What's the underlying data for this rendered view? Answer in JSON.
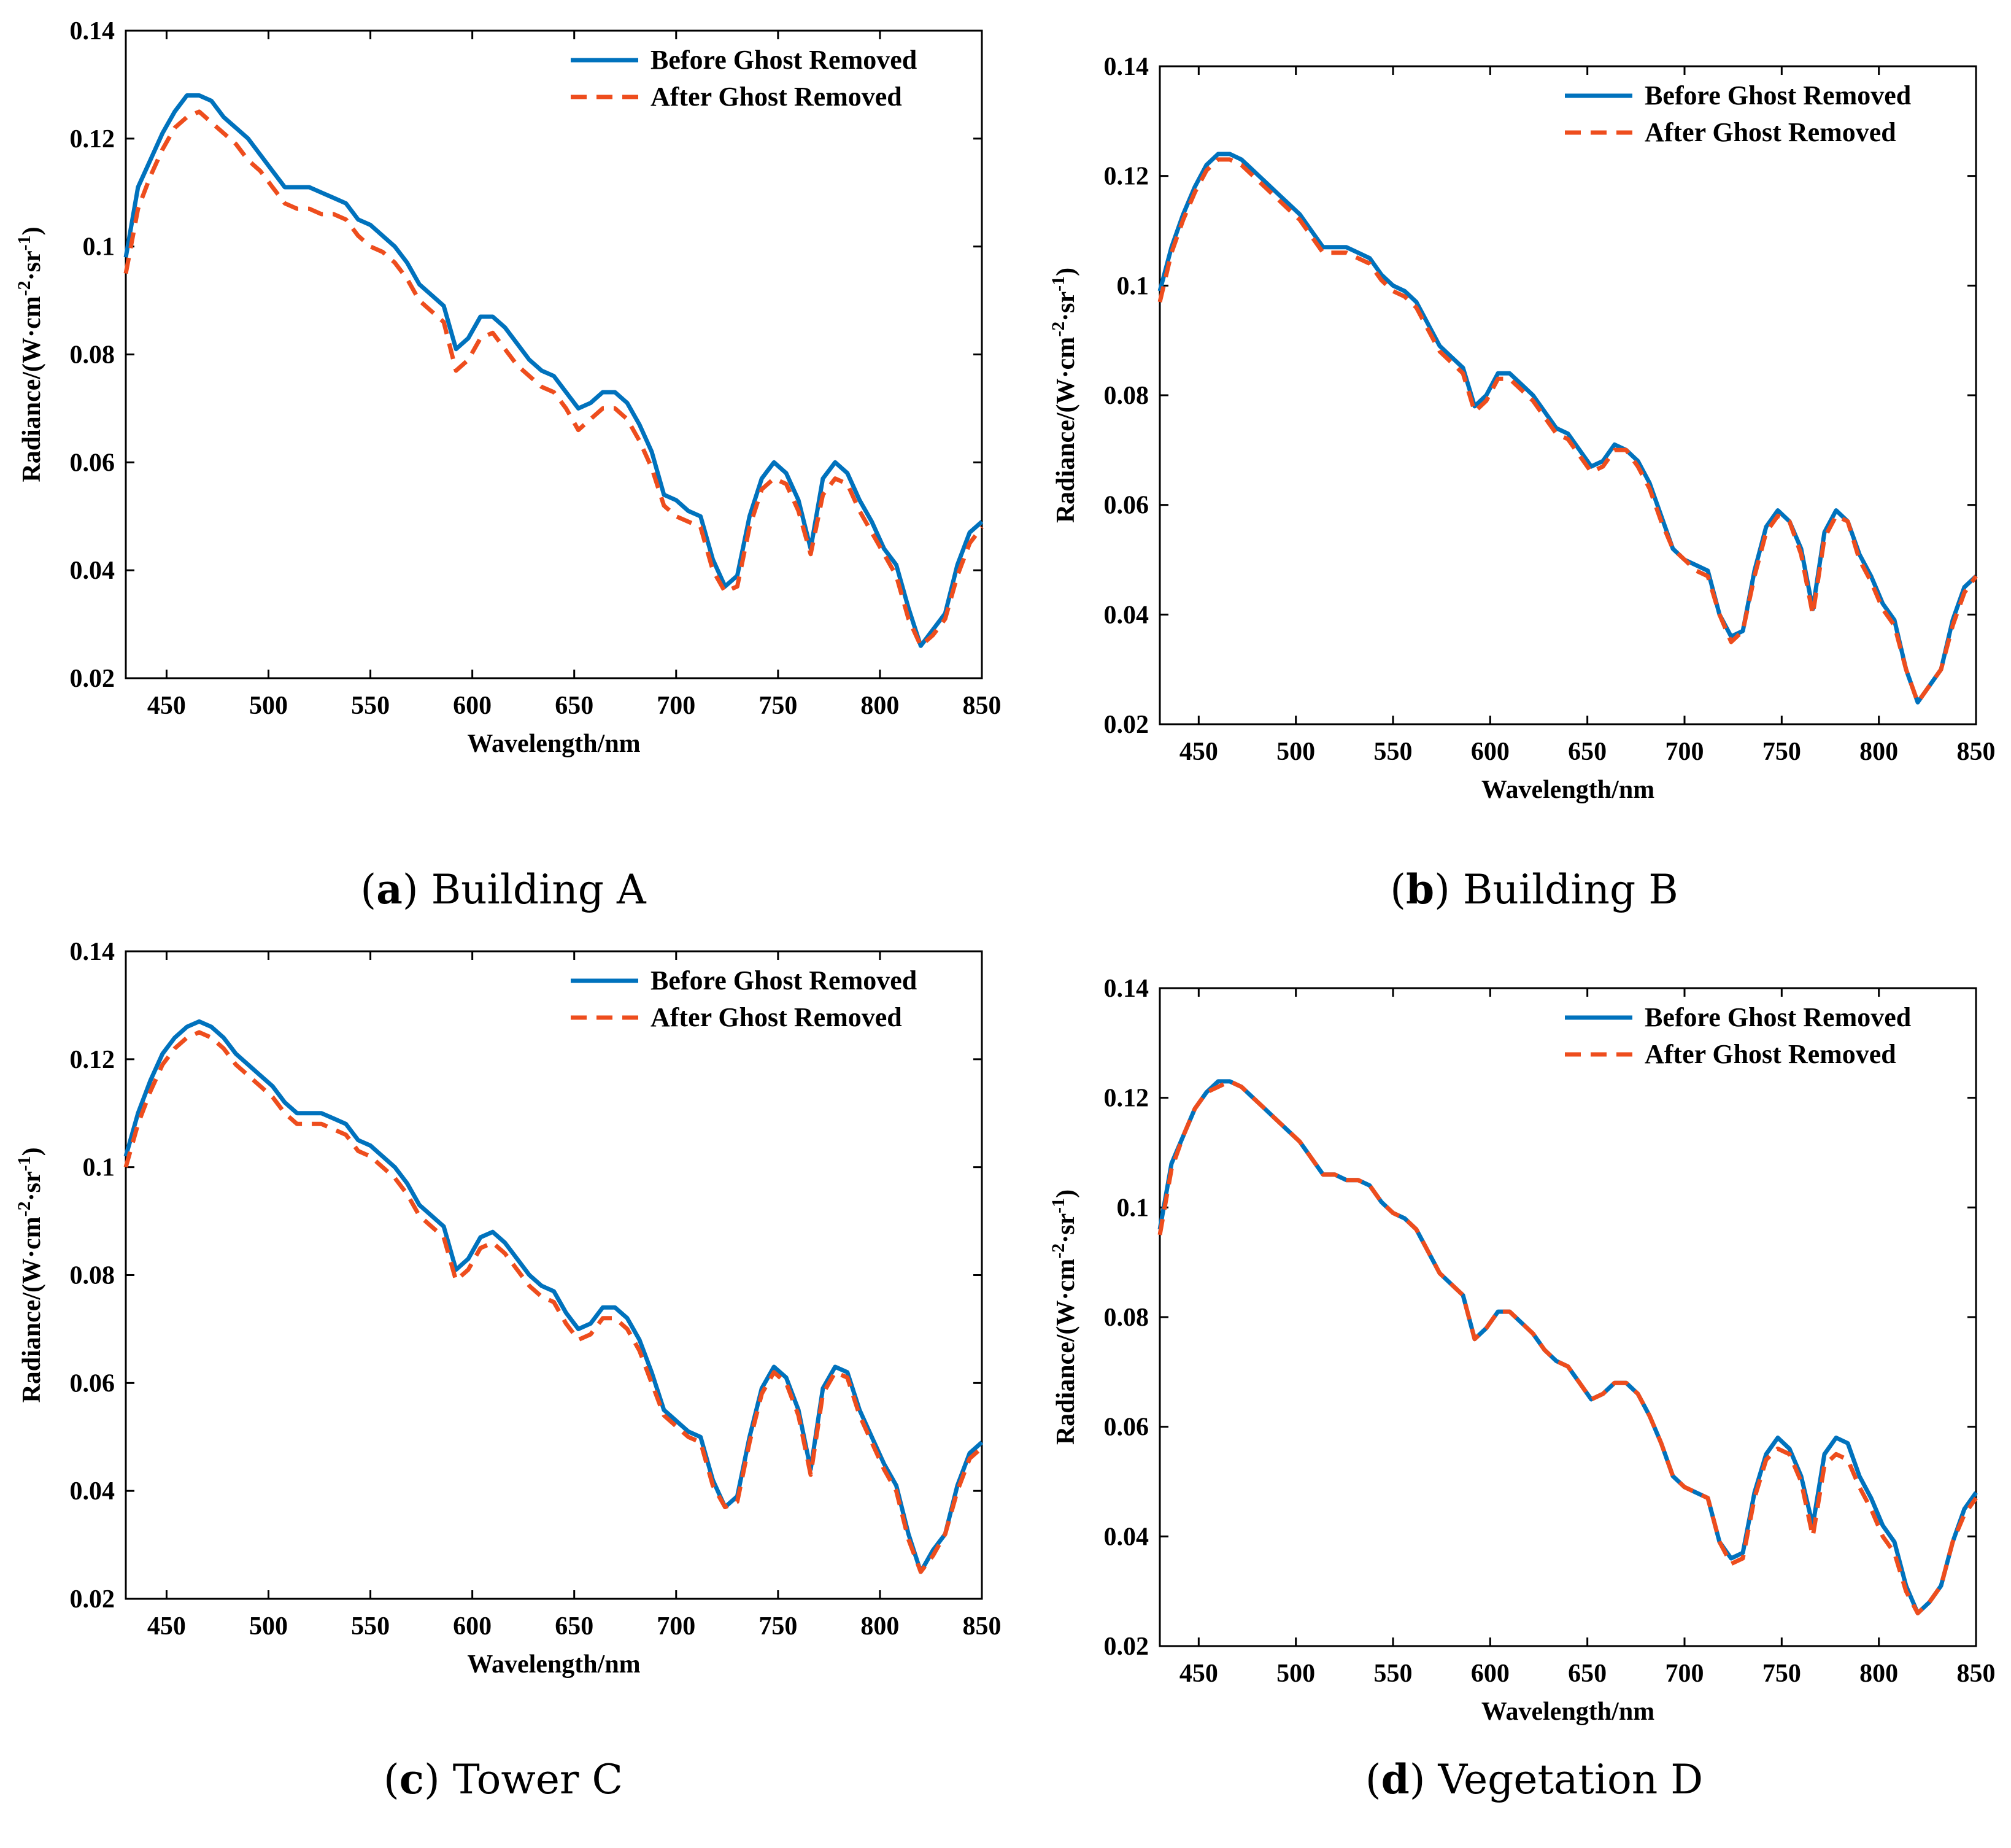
{
  "colors": {
    "before": "#0072BD",
    "after": "#EE4D1D",
    "axis": "#000000"
  },
  "chart_data": [
    {
      "type": "line",
      "panel_letter": "a",
      "caption_text": "Building A",
      "xlabel": "Wavelength/nm",
      "ylabel_main": "Radiance/(W·cm",
      "ylabel_exp1": "-2",
      "ylabel_mid": "·sr",
      "ylabel_exp2": "-1",
      "ylabel_end": ")",
      "xlim": [
        430,
        850
      ],
      "ylim": [
        0.02,
        0.14
      ],
      "xticks": [
        450,
        500,
        550,
        600,
        650,
        700,
        750,
        800,
        850
      ],
      "yticks": [
        0.02,
        0.04,
        0.06,
        0.08,
        0.1,
        0.12,
        0.14
      ],
      "ytick_labels": [
        "0.02",
        "0.04",
        "0.06",
        "0.08",
        "0.1",
        "0.12",
        "0.14"
      ],
      "legend_position": "top-right",
      "grid": false,
      "x": [
        430,
        436,
        442,
        448,
        454,
        460,
        466,
        472,
        478,
        484,
        490,
        496,
        502,
        508,
        514,
        520,
        526,
        532,
        538,
        544,
        550,
        556,
        562,
        568,
        574,
        580,
        586,
        592,
        598,
        604,
        610,
        616,
        622,
        628,
        634,
        640,
        646,
        652,
        658,
        664,
        670,
        676,
        682,
        688,
        694,
        700,
        706,
        712,
        718,
        724,
        730,
        736,
        742,
        748,
        754,
        760,
        766,
        772,
        778,
        784,
        790,
        796,
        802,
        808,
        814,
        820,
        826,
        832,
        838,
        844,
        850
      ],
      "series": [
        {
          "name": "Before Ghost Removed",
          "style": "solid",
          "values": [
            0.098,
            0.111,
            0.116,
            0.121,
            0.125,
            0.128,
            0.128,
            0.127,
            0.124,
            0.122,
            0.12,
            0.117,
            0.114,
            0.111,
            0.111,
            0.111,
            0.11,
            0.109,
            0.108,
            0.105,
            0.104,
            0.102,
            0.1,
            0.097,
            0.093,
            0.091,
            0.089,
            0.081,
            0.083,
            0.087,
            0.087,
            0.085,
            0.082,
            0.079,
            0.077,
            0.076,
            0.073,
            0.07,
            0.071,
            0.073,
            0.073,
            0.071,
            0.067,
            0.062,
            0.054,
            0.053,
            0.051,
            0.05,
            0.042,
            0.037,
            0.039,
            0.05,
            0.057,
            0.06,
            0.058,
            0.053,
            0.044,
            0.057,
            0.06,
            0.058,
            0.053,
            0.049,
            0.044,
            0.041,
            0.033,
            0.026,
            0.029,
            0.032,
            0.041,
            0.047,
            0.049
          ]
        },
        {
          "name": "After Ghost Removed",
          "style": "dashed",
          "values": [
            0.095,
            0.107,
            0.113,
            0.118,
            0.122,
            0.124,
            0.125,
            0.123,
            0.121,
            0.119,
            0.116,
            0.114,
            0.111,
            0.108,
            0.107,
            0.107,
            0.106,
            0.106,
            0.105,
            0.102,
            0.1,
            0.099,
            0.097,
            0.094,
            0.09,
            0.088,
            0.086,
            0.077,
            0.079,
            0.083,
            0.084,
            0.081,
            0.078,
            0.076,
            0.074,
            0.073,
            0.07,
            0.066,
            0.068,
            0.07,
            0.07,
            0.068,
            0.064,
            0.059,
            0.052,
            0.05,
            0.049,
            0.048,
            0.04,
            0.036,
            0.037,
            0.048,
            0.055,
            0.057,
            0.056,
            0.051,
            0.043,
            0.054,
            0.057,
            0.056,
            0.051,
            0.047,
            0.043,
            0.039,
            0.031,
            0.026,
            0.028,
            0.031,
            0.039,
            0.045,
            0.048
          ]
        }
      ]
    },
    {
      "type": "line",
      "panel_letter": "b",
      "caption_text": "Building B",
      "xlabel": "Wavelength/nm",
      "ylabel_main": "Radiance/(W·cm",
      "ylabel_exp1": "-2",
      "ylabel_mid": "·sr",
      "ylabel_exp2": "-1",
      "ylabel_end": ")",
      "xlim": [
        430,
        850
      ],
      "ylim": [
        0.02,
        0.14
      ],
      "xticks": [
        450,
        500,
        550,
        600,
        650,
        700,
        750,
        800,
        850
      ],
      "yticks": [
        0.02,
        0.04,
        0.06,
        0.08,
        0.1,
        0.12,
        0.14
      ],
      "ytick_labels": [
        "0.02",
        "0.04",
        "0.06",
        "0.08",
        "0.1",
        "0.12",
        "0.14"
      ],
      "legend_position": "top-right",
      "grid": false,
      "x": [
        430,
        436,
        442,
        448,
        454,
        460,
        466,
        472,
        478,
        484,
        490,
        496,
        502,
        508,
        514,
        520,
        526,
        532,
        538,
        544,
        550,
        556,
        562,
        568,
        574,
        580,
        586,
        592,
        598,
        604,
        610,
        616,
        622,
        628,
        634,
        640,
        646,
        652,
        658,
        664,
        670,
        676,
        682,
        688,
        694,
        700,
        706,
        712,
        718,
        724,
        730,
        736,
        742,
        748,
        754,
        760,
        766,
        772,
        778,
        784,
        790,
        796,
        802,
        808,
        814,
        820,
        826,
        832,
        838,
        844,
        850
      ],
      "series": [
        {
          "name": "Before Ghost Removed",
          "style": "solid",
          "values": [
            0.099,
            0.107,
            0.113,
            0.118,
            0.122,
            0.124,
            0.124,
            0.123,
            0.121,
            0.119,
            0.117,
            0.115,
            0.113,
            0.11,
            0.107,
            0.107,
            0.107,
            0.106,
            0.105,
            0.102,
            0.1,
            0.099,
            0.097,
            0.093,
            0.089,
            0.087,
            0.085,
            0.078,
            0.08,
            0.084,
            0.084,
            0.082,
            0.08,
            0.077,
            0.074,
            0.073,
            0.07,
            0.067,
            0.068,
            0.071,
            0.07,
            0.068,
            0.064,
            0.058,
            0.052,
            0.05,
            0.049,
            0.048,
            0.04,
            0.036,
            0.037,
            0.048,
            0.056,
            0.059,
            0.057,
            0.052,
            0.041,
            0.055,
            0.059,
            0.057,
            0.051,
            0.047,
            0.042,
            0.039,
            0.03,
            0.024,
            0.027,
            0.03,
            0.039,
            0.045,
            0.047
          ]
        },
        {
          "name": "After Ghost Removed",
          "style": "dashed",
          "values": [
            0.097,
            0.106,
            0.112,
            0.117,
            0.121,
            0.123,
            0.123,
            0.122,
            0.12,
            0.118,
            0.116,
            0.114,
            0.112,
            0.109,
            0.106,
            0.106,
            0.106,
            0.105,
            0.104,
            0.101,
            0.099,
            0.098,
            0.096,
            0.092,
            0.088,
            0.086,
            0.084,
            0.077,
            0.079,
            0.083,
            0.083,
            0.081,
            0.079,
            0.076,
            0.073,
            0.072,
            0.069,
            0.066,
            0.067,
            0.07,
            0.07,
            0.067,
            0.063,
            0.057,
            0.052,
            0.05,
            0.048,
            0.047,
            0.04,
            0.035,
            0.037,
            0.047,
            0.055,
            0.058,
            0.057,
            0.051,
            0.04,
            0.054,
            0.058,
            0.057,
            0.05,
            0.046,
            0.041,
            0.038,
            0.03,
            0.024,
            0.027,
            0.03,
            0.038,
            0.044,
            0.047
          ]
        }
      ]
    },
    {
      "type": "line",
      "panel_letter": "c",
      "caption_text": "Tower C",
      "xlabel": "Wavelength/nm",
      "ylabel_main": "Radiance/(W·cm",
      "ylabel_exp1": "-2",
      "ylabel_mid": "·sr",
      "ylabel_exp2": "-1",
      "ylabel_end": ")",
      "xlim": [
        430,
        850
      ],
      "ylim": [
        0.02,
        0.14
      ],
      "xticks": [
        450,
        500,
        550,
        600,
        650,
        700,
        750,
        800,
        850
      ],
      "yticks": [
        0.02,
        0.04,
        0.06,
        0.08,
        0.1,
        0.12,
        0.14
      ],
      "ytick_labels": [
        "0.02",
        "0.04",
        "0.06",
        "0.08",
        "0.1",
        "0.12",
        "0.14"
      ],
      "legend_position": "top-right",
      "grid": false,
      "x": [
        430,
        436,
        442,
        448,
        454,
        460,
        466,
        472,
        478,
        484,
        490,
        496,
        502,
        508,
        514,
        520,
        526,
        532,
        538,
        544,
        550,
        556,
        562,
        568,
        574,
        580,
        586,
        592,
        598,
        604,
        610,
        616,
        622,
        628,
        634,
        640,
        646,
        652,
        658,
        664,
        670,
        676,
        682,
        688,
        694,
        700,
        706,
        712,
        718,
        724,
        730,
        736,
        742,
        748,
        754,
        760,
        766,
        772,
        778,
        784,
        790,
        796,
        802,
        808,
        814,
        820,
        826,
        832,
        838,
        844,
        850
      ],
      "series": [
        {
          "name": "Before Ghost Removed",
          "style": "solid",
          "values": [
            0.102,
            0.11,
            0.116,
            0.121,
            0.124,
            0.126,
            0.127,
            0.126,
            0.124,
            0.121,
            0.119,
            0.117,
            0.115,
            0.112,
            0.11,
            0.11,
            0.11,
            0.109,
            0.108,
            0.105,
            0.104,
            0.102,
            0.1,
            0.097,
            0.093,
            0.091,
            0.089,
            0.081,
            0.083,
            0.087,
            0.088,
            0.086,
            0.083,
            0.08,
            0.078,
            0.077,
            0.073,
            0.07,
            0.071,
            0.074,
            0.074,
            0.072,
            0.068,
            0.062,
            0.055,
            0.053,
            0.051,
            0.05,
            0.042,
            0.037,
            0.039,
            0.05,
            0.059,
            0.063,
            0.061,
            0.055,
            0.044,
            0.059,
            0.063,
            0.062,
            0.055,
            0.05,
            0.045,
            0.041,
            0.032,
            0.025,
            0.029,
            0.032,
            0.041,
            0.047,
            0.049
          ]
        },
        {
          "name": "After Ghost Removed",
          "style": "dashed",
          "values": [
            0.1,
            0.108,
            0.114,
            0.119,
            0.122,
            0.124,
            0.125,
            0.124,
            0.122,
            0.119,
            0.117,
            0.115,
            0.113,
            0.11,
            0.108,
            0.108,
            0.108,
            0.107,
            0.106,
            0.103,
            0.102,
            0.1,
            0.098,
            0.095,
            0.091,
            0.089,
            0.087,
            0.079,
            0.081,
            0.085,
            0.086,
            0.084,
            0.081,
            0.078,
            0.076,
            0.075,
            0.071,
            0.068,
            0.069,
            0.072,
            0.072,
            0.07,
            0.066,
            0.06,
            0.054,
            0.052,
            0.05,
            0.049,
            0.041,
            0.037,
            0.038,
            0.049,
            0.058,
            0.062,
            0.06,
            0.054,
            0.043,
            0.058,
            0.062,
            0.061,
            0.054,
            0.049,
            0.044,
            0.04,
            0.031,
            0.025,
            0.028,
            0.032,
            0.04,
            0.046,
            0.048
          ]
        }
      ]
    },
    {
      "type": "line",
      "panel_letter": "d",
      "caption_text": "Vegetation D",
      "xlabel": "Wavelength/nm",
      "ylabel_main": "Radiance/(W·cm",
      "ylabel_exp1": "-2",
      "ylabel_mid": "·sr",
      "ylabel_exp2": "-1",
      "ylabel_end": ")",
      "xlim": [
        430,
        850
      ],
      "ylim": [
        0.02,
        0.14
      ],
      "xticks": [
        450,
        500,
        550,
        600,
        650,
        700,
        750,
        800,
        850
      ],
      "yticks": [
        0.02,
        0.04,
        0.06,
        0.08,
        0.1,
        0.12,
        0.14
      ],
      "ytick_labels": [
        "0.02",
        "0.04",
        "0.06",
        "0.08",
        "0.1",
        "0.12",
        "0.14"
      ],
      "legend_position": "top-right",
      "grid": false,
      "x": [
        430,
        436,
        442,
        448,
        454,
        460,
        466,
        472,
        478,
        484,
        490,
        496,
        502,
        508,
        514,
        520,
        526,
        532,
        538,
        544,
        550,
        556,
        562,
        568,
        574,
        580,
        586,
        592,
        598,
        604,
        610,
        616,
        622,
        628,
        634,
        640,
        646,
        652,
        658,
        664,
        670,
        676,
        682,
        688,
        694,
        700,
        706,
        712,
        718,
        724,
        730,
        736,
        742,
        748,
        754,
        760,
        766,
        772,
        778,
        784,
        790,
        796,
        802,
        808,
        814,
        820,
        826,
        832,
        838,
        844,
        850
      ],
      "series": [
        {
          "name": "Before Ghost Removed",
          "style": "solid",
          "values": [
            0.096,
            0.108,
            0.113,
            0.118,
            0.121,
            0.123,
            0.123,
            0.122,
            0.12,
            0.118,
            0.116,
            0.114,
            0.112,
            0.109,
            0.106,
            0.106,
            0.105,
            0.105,
            0.104,
            0.101,
            0.099,
            0.098,
            0.096,
            0.092,
            0.088,
            0.086,
            0.084,
            0.076,
            0.078,
            0.081,
            0.081,
            0.079,
            0.077,
            0.074,
            0.072,
            0.071,
            0.068,
            0.065,
            0.066,
            0.068,
            0.068,
            0.066,
            0.062,
            0.057,
            0.051,
            0.049,
            0.048,
            0.047,
            0.039,
            0.036,
            0.037,
            0.048,
            0.055,
            0.058,
            0.056,
            0.051,
            0.042,
            0.055,
            0.058,
            0.057,
            0.051,
            0.047,
            0.042,
            0.039,
            0.031,
            0.026,
            0.028,
            0.031,
            0.039,
            0.045,
            0.048
          ]
        },
        {
          "name": "After Ghost Removed",
          "style": "dashed",
          "values": [
            0.095,
            0.107,
            0.113,
            0.118,
            0.121,
            0.122,
            0.123,
            0.122,
            0.12,
            0.118,
            0.116,
            0.114,
            0.112,
            0.109,
            0.106,
            0.106,
            0.105,
            0.105,
            0.104,
            0.101,
            0.099,
            0.098,
            0.096,
            0.092,
            0.088,
            0.086,
            0.084,
            0.076,
            0.078,
            0.081,
            0.081,
            0.079,
            0.077,
            0.074,
            0.072,
            0.071,
            0.068,
            0.065,
            0.066,
            0.068,
            0.068,
            0.066,
            0.062,
            0.057,
            0.051,
            0.049,
            0.048,
            0.047,
            0.039,
            0.035,
            0.036,
            0.047,
            0.054,
            0.056,
            0.055,
            0.05,
            0.04,
            0.053,
            0.055,
            0.054,
            0.049,
            0.045,
            0.04,
            0.037,
            0.03,
            0.026,
            0.028,
            0.031,
            0.039,
            0.044,
            0.047
          ]
        }
      ]
    }
  ]
}
